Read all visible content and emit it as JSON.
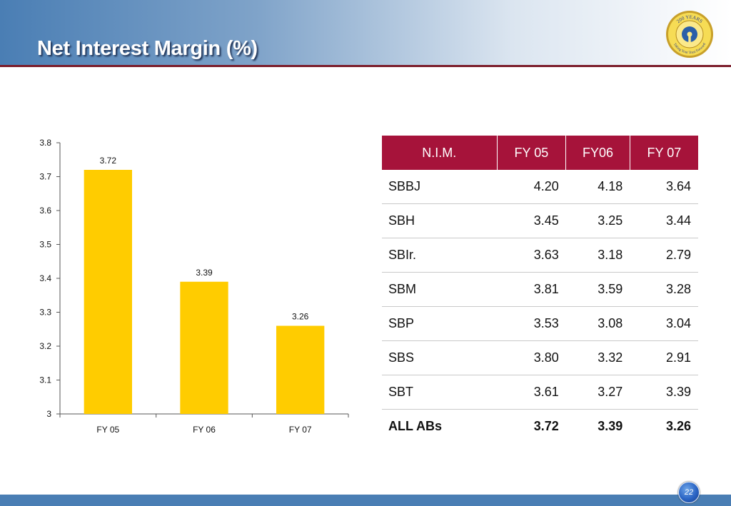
{
  "slide": {
    "title": "Net Interest Margin (%)",
    "page_number": "22"
  },
  "logo": {
    "text_top": "200 YEARS",
    "text_bottom": "Taking Your Trust Forward"
  },
  "colors": {
    "bar": "#ffcc00",
    "table_header": "#a6133a",
    "header_rule": "#7b1c2a",
    "footer": "#4a7eb4"
  },
  "chart_data": {
    "type": "bar",
    "categories": [
      "FY 05",
      "FY 06",
      "FY 07"
    ],
    "values": [
      3.72,
      3.39,
      3.26
    ],
    "data_labels": [
      "3.72",
      "3.39",
      "3.26"
    ],
    "ylim": [
      3,
      3.8
    ],
    "yticks": [
      "3",
      "3.1",
      "3.2",
      "3.3",
      "3.4",
      "3.5",
      "3.6",
      "3.7",
      "3.8"
    ],
    "title": "",
    "xlabel": "",
    "ylabel": "",
    "grid": false,
    "legend": "none"
  },
  "table": {
    "headers": [
      "N.I.M.",
      "FY 05",
      "FY06",
      "FY 07"
    ],
    "rows": [
      {
        "name": "SBBJ",
        "values": [
          "4.20",
          "4.18",
          "3.64"
        ]
      },
      {
        "name": "SBH",
        "values": [
          "3.45",
          "3.25",
          "3.44"
        ]
      },
      {
        "name": "SBIr.",
        "values": [
          "3.63",
          "3.18",
          "2.79"
        ]
      },
      {
        "name": "SBM",
        "values": [
          "3.81",
          "3.59",
          "3.28"
        ]
      },
      {
        "name": "SBP",
        "values": [
          "3.53",
          "3.08",
          "3.04"
        ]
      },
      {
        "name": "SBS",
        "values": [
          "3.80",
          "3.32",
          "2.91"
        ]
      },
      {
        "name": "SBT",
        "values": [
          "3.61",
          "3.27",
          "3.39"
        ]
      }
    ],
    "total": {
      "name": "ALL ABs",
      "values": [
        "3.72",
        "3.39",
        "3.26"
      ]
    }
  }
}
